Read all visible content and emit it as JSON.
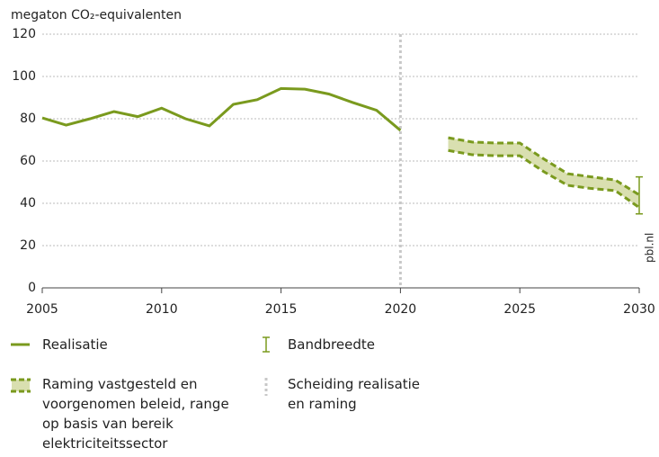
{
  "chart_data": {
    "type": "line",
    "ylabel": "megaton CO₂-equivalenten",
    "xlim": [
      2005,
      2030
    ],
    "xticks": [
      2005,
      2010,
      2015,
      2020,
      2025,
      2030
    ],
    "ylim": [
      0,
      120
    ],
    "yticks": [
      0,
      20,
      40,
      60,
      80,
      100,
      120
    ],
    "grid": true,
    "watermark": "pbl.nl",
    "series": [
      {
        "name": "Realisatie",
        "color": "#7a9a1e",
        "x": [
          2005,
          2006,
          2007,
          2008,
          2009,
          2010,
          2011,
          2012,
          2013,
          2014,
          2015,
          2016,
          2017,
          2018,
          2019,
          2020
        ],
        "values": [
          80.4,
          77,
          80,
          83.4,
          81,
          85,
          80,
          76.6,
          86.8,
          89,
          94.3,
          94,
          91.7,
          87.7,
          84,
          74.5
        ]
      }
    ],
    "band": {
      "name": "Raming vastgesteld en voorgenomen beleid, range op basis van bereik elektriciteitssector",
      "color": "#7a9a1e",
      "fill": "#d9dfb0",
      "x": [
        2022,
        2023,
        2024,
        2025,
        2026,
        2027,
        2028,
        2029,
        2030
      ],
      "upper": [
        71,
        69,
        68.5,
        68.5,
        61,
        54,
        52.5,
        51,
        44
      ],
      "lower": [
        65,
        63,
        62.5,
        62.5,
        55,
        48.5,
        47,
        46,
        38
      ]
    },
    "error_bar": {
      "name": "Bandbreedte",
      "color": "#7a9a1e",
      "x": 2030,
      "low": 35,
      "high": 52.5
    },
    "separator": {
      "name": "Scheiding realisatie en raming",
      "color": "#c8c8c8",
      "x": 2020
    }
  }
}
